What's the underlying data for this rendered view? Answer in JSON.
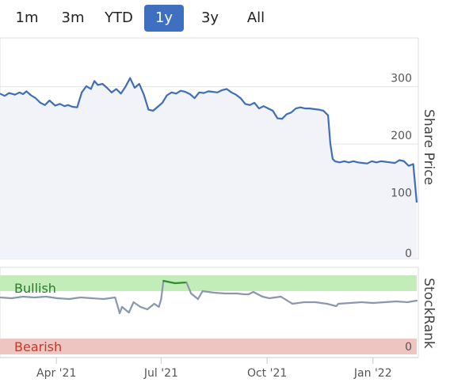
{
  "range_selector": {
    "options": [
      "1m",
      "3m",
      "YTD",
      "1y",
      "3y",
      "All"
    ],
    "selected": "1y"
  },
  "chart_data": [
    {
      "type": "area",
      "ylabel": "Share Price",
      "yticks": [
        0,
        100,
        200,
        300
      ],
      "ylim": [
        0,
        385
      ],
      "grid": true,
      "colors": {
        "line": "#3f6eb8",
        "fill": "#f2f3f8"
      },
      "x": [
        "2021-02-11",
        "2021-02-15",
        "2021-02-19",
        "2021-02-24",
        "2021-02-28",
        "2021-03-03",
        "2021-03-06",
        "2021-03-10",
        "2021-03-14",
        "2021-03-18",
        "2021-03-22",
        "2021-03-26",
        "2021-03-31",
        "2021-04-04",
        "2021-04-08",
        "2021-04-11",
        "2021-04-15",
        "2021-04-19",
        "2021-04-23",
        "2021-04-27",
        "2021-05-01",
        "2021-05-04",
        "2021-05-07",
        "2021-05-11",
        "2021-05-15",
        "2021-05-19",
        "2021-05-23",
        "2021-05-27",
        "2021-05-31",
        "2021-06-04",
        "2021-06-08",
        "2021-06-12",
        "2021-06-16",
        "2021-06-20",
        "2021-06-24",
        "2021-06-28",
        "2021-07-02",
        "2021-07-06",
        "2021-07-10",
        "2021-07-14",
        "2021-07-18",
        "2021-07-22",
        "2021-07-26",
        "2021-07-30",
        "2021-08-03",
        "2021-08-07",
        "2021-08-11",
        "2021-08-15",
        "2021-08-19",
        "2021-08-23",
        "2021-08-27",
        "2021-08-31",
        "2021-09-04",
        "2021-09-08",
        "2021-09-12",
        "2021-09-16",
        "2021-09-20",
        "2021-09-24",
        "2021-09-28",
        "2021-10-02",
        "2021-10-06",
        "2021-10-10",
        "2021-10-14",
        "2021-10-18",
        "2021-10-22",
        "2021-10-26",
        "2021-10-30",
        "2021-11-03",
        "2021-11-07",
        "2021-11-11",
        "2021-11-15",
        "2021-11-19",
        "2021-11-23",
        "2021-11-25",
        "2021-11-27",
        "2021-11-29",
        "2021-12-03",
        "2021-12-07",
        "2021-12-11",
        "2021-12-15",
        "2021-12-19",
        "2021-12-23",
        "2021-12-27",
        "2021-12-31",
        "2022-01-04",
        "2022-01-08",
        "2022-01-12",
        "2022-01-16",
        "2022-01-20",
        "2022-01-24",
        "2022-01-28",
        "2022-02-01",
        "2022-02-05",
        "2022-02-08"
      ],
      "y": [
        288,
        284,
        289,
        286,
        290,
        287,
        292,
        285,
        280,
        272,
        268,
        276,
        267,
        270,
        266,
        268,
        265,
        264,
        290,
        301,
        296,
        310,
        303,
        305,
        298,
        290,
        296,
        288,
        300,
        315,
        298,
        305,
        286,
        260,
        258,
        265,
        272,
        285,
        290,
        288,
        293,
        291,
        287,
        280,
        290,
        289,
        292,
        291,
        290,
        294,
        296,
        290,
        286,
        280,
        270,
        268,
        272,
        262,
        266,
        262,
        258,
        245,
        244,
        252,
        255,
        262,
        264,
        262,
        262,
        261,
        260,
        258,
        250,
        200,
        174,
        170,
        168,
        170,
        168,
        170,
        168,
        167,
        166,
        170,
        168,
        170,
        169,
        168,
        167,
        172,
        170,
        162,
        165,
        98
      ]
    },
    {
      "type": "line",
      "ylabel": "StockRank",
      "yticks": [
        0
      ],
      "ylim": [
        0,
        100
      ],
      "bands": [
        {
          "label": "Bullish",
          "from": 80,
          "to": 100,
          "color": "#c3edb8",
          "text_color": "#2c7a2a"
        },
        {
          "label": "Bearish",
          "from": 0,
          "to": 20,
          "color": "#eec5c0",
          "text_color": "#c0392b"
        }
      ],
      "colors": {
        "neutral": "#8a97ad",
        "bullish": "#2e8b2e"
      },
      "x_ticks": [
        "Apr '21",
        "Jul '21",
        "Oct '21",
        "Jan '22"
      ],
      "x_tick_dates": [
        "2021-04-01",
        "2021-07-01",
        "2021-10-01",
        "2022-01-01"
      ],
      "x": [
        "2021-02-11",
        "2021-02-21",
        "2021-03-03",
        "2021-03-13",
        "2021-03-23",
        "2021-04-02",
        "2021-04-12",
        "2021-04-22",
        "2021-05-02",
        "2021-05-12",
        "2021-05-22",
        "2021-05-26",
        "2021-05-28",
        "2021-06-03",
        "2021-06-07",
        "2021-06-13",
        "2021-06-19",
        "2021-06-25",
        "2021-06-29",
        "2021-07-01",
        "2021-07-03",
        "2021-07-13",
        "2021-07-23",
        "2021-07-27",
        "2021-08-02",
        "2021-08-06",
        "2021-08-16",
        "2021-08-26",
        "2021-09-05",
        "2021-09-11",
        "2021-09-15",
        "2021-09-19",
        "2021-09-23",
        "2021-09-27",
        "2021-10-03",
        "2021-10-13",
        "2021-10-23",
        "2021-11-02",
        "2021-11-12",
        "2021-11-22",
        "2021-11-30",
        "2021-12-02",
        "2021-12-12",
        "2021-12-22",
        "2022-01-01",
        "2022-01-11",
        "2022-01-21",
        "2022-01-31",
        "2022-02-08"
      ],
      "y": [
        72,
        71,
        73,
        72,
        73,
        71,
        70,
        72,
        71,
        70,
        72,
        52,
        60,
        53,
        66,
        60,
        57,
        64,
        60,
        70,
        93,
        90,
        91,
        77,
        70,
        80,
        78,
        77,
        77,
        76,
        76,
        79,
        76,
        73,
        71,
        73,
        64,
        66,
        66,
        64,
        61,
        64,
        65,
        66,
        65,
        66,
        67,
        66,
        68
      ]
    }
  ]
}
